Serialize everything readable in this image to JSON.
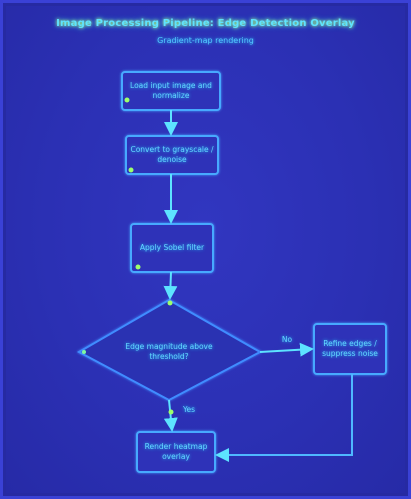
{
  "diagram": {
    "title": "Image Processing Pipeline: Edge Detection Overlay",
    "subtitle": "Gradient-map rendering",
    "nodes": [
      {
        "id": "n1",
        "label": "Load input image and normalize"
      },
      {
        "id": "n2",
        "label": "Convert to grayscale / denoise"
      },
      {
        "id": "n3",
        "label": "Apply Sobel filter"
      },
      {
        "id": "d1",
        "label": "Edge magnitude above threshold?"
      },
      {
        "id": "n5",
        "label": "Refine edges / suppress noise"
      },
      {
        "id": "n4",
        "label": "Render heatmap overlay"
      }
    ],
    "edges": [
      {
        "from": "n1",
        "to": "n2",
        "label": ""
      },
      {
        "from": "n2",
        "to": "n3",
        "label": ""
      },
      {
        "from": "n3",
        "to": "d1",
        "label": ""
      },
      {
        "from": "d1",
        "to": "n5",
        "label": "No"
      },
      {
        "from": "d1",
        "to": "n4",
        "label": "Yes"
      },
      {
        "from": "n5",
        "to": "n4",
        "label": ""
      }
    ],
    "colors": {
      "background": "#2b30b4",
      "stroke": "#44a6ff",
      "glow": "#6cff8a",
      "text": "#63d7ff"
    }
  }
}
